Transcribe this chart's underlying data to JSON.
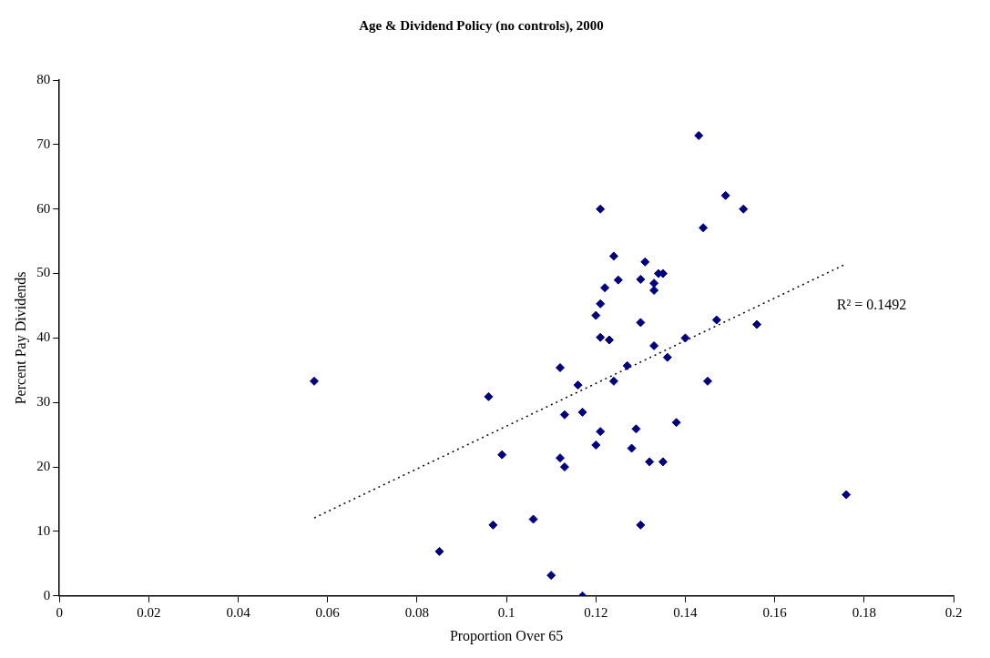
{
  "chart_data": {
    "type": "scatter",
    "title": "Age & Dividend Policy (no controls), 2000",
    "xlabel": "Proportion Over 65",
    "ylabel": "Percent Pay Dividends",
    "xlim": [
      0,
      0.2
    ],
    "xticks": [
      0,
      0.02,
      0.04,
      0.06,
      0.08,
      0.1,
      0.12,
      0.14,
      0.16,
      0.18,
      0.2
    ],
    "ylim": [
      0,
      80
    ],
    "yticks": [
      0,
      10,
      20,
      30,
      40,
      50,
      60,
      70,
      80
    ],
    "grid": false,
    "legend": false,
    "marker": "diamond",
    "annotations": [
      "R² = 0.1492"
    ],
    "series": [
      {
        "color": "#000080",
        "x": [
          0.057,
          0.085,
          0.096,
          0.097,
          0.099,
          0.106,
          0.11,
          0.112,
          0.112,
          0.113,
          0.113,
          0.116,
          0.117,
          0.117,
          0.12,
          0.12,
          0.121,
          0.121,
          0.121,
          0.121,
          0.122,
          0.123,
          0.124,
          0.124,
          0.125,
          0.127,
          0.128,
          0.129,
          0.13,
          0.13,
          0.13,
          0.131,
          0.132,
          0.133,
          0.133,
          0.133,
          0.134,
          0.135,
          0.135,
          0.136,
          0.138,
          0.14,
          0.143,
          0.144,
          0.145,
          0.147,
          0.149,
          0.153,
          0.156,
          0.176
        ],
        "values": [
          33.3,
          6.9,
          30.9,
          11.0,
          21.9,
          11.9,
          3.2,
          35.4,
          21.4,
          28.1,
          20.0,
          32.7,
          28.5,
          0,
          43.5,
          23.4,
          60,
          45.3,
          40.1,
          25.5,
          47.8,
          39.7,
          52.7,
          33.3,
          49.0,
          35.7,
          22.9,
          25.9,
          49.1,
          42.4,
          11.0,
          51.8,
          20.8,
          48.5,
          47.4,
          38.8,
          50.0,
          50.0,
          20.8,
          37.0,
          26.9,
          40.0,
          71.4,
          57.1,
          33.3,
          42.8,
          62.1,
          60.0,
          42.1,
          15.7
        ]
      },
      {
        "type": "line",
        "color": "#000000",
        "marker": "none",
        "line_style": "dotted",
        "x": [
          0.057,
          0.176
        ],
        "values": [
          12.1,
          51.5
        ]
      }
    ]
  }
}
